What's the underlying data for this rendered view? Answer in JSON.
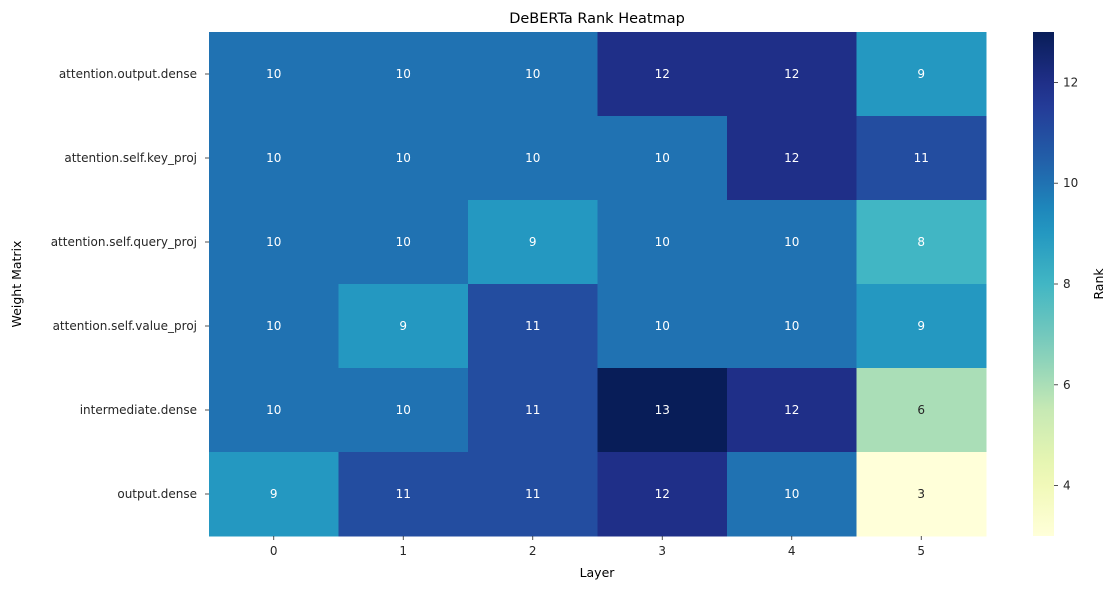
{
  "chart_data": {
    "type": "heatmap",
    "title": "DeBERTa Rank Heatmap",
    "xlabel": "Layer",
    "ylabel": "Weight Matrix",
    "x_categories": [
      "0",
      "1",
      "2",
      "3",
      "4",
      "5"
    ],
    "y_categories": [
      "attention.output.dense",
      "attention.self.key_proj",
      "attention.self.query_proj",
      "attention.self.value_proj",
      "intermediate.dense",
      "output.dense"
    ],
    "values": [
      [
        10,
        10,
        10,
        12,
        12,
        9
      ],
      [
        10,
        10,
        10,
        10,
        12,
        11
      ],
      [
        10,
        10,
        9,
        10,
        10,
        8
      ],
      [
        10,
        9,
        11,
        10,
        10,
        9
      ],
      [
        10,
        10,
        11,
        13,
        12,
        6
      ],
      [
        9,
        11,
        11,
        12,
        10,
        3
      ]
    ],
    "annotations": true,
    "colormap": "YlGnBu",
    "colorbar": {
      "label": "Rank",
      "range": [
        3,
        13
      ],
      "ticks": [
        "4",
        "6",
        "8",
        "10",
        "12"
      ]
    }
  }
}
